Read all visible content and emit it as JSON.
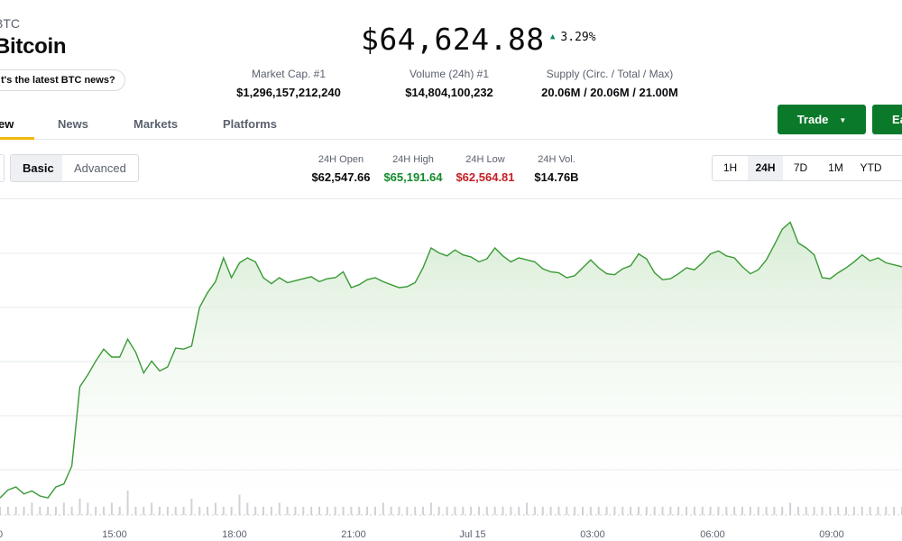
{
  "asset": {
    "ticker": "BTC",
    "name": "Bitcoin",
    "news_prompt": "t's the latest BTC news?"
  },
  "price": {
    "value": "$64,624.88",
    "change": "3.29%",
    "change_direction": "up",
    "change_color": "#098551"
  },
  "stats": [
    {
      "label": "Market Cap. #1",
      "value": "$1,296,157,212,240"
    },
    {
      "label": "Volume (24h) #1",
      "value": "$14,804,100,232"
    },
    {
      "label": "Supply (Circ. / Total / Max)",
      "value": "20.06M / 20.06M / 21.00M"
    }
  ],
  "tabs": [
    {
      "label": "ew",
      "active": true
    },
    {
      "label": "News",
      "active": false
    },
    {
      "label": "Markets",
      "active": false
    },
    {
      "label": "Platforms",
      "active": false
    }
  ],
  "actions": {
    "trade_label": "Trade",
    "earn_label": "Ea"
  },
  "view_toggle": {
    "options": [
      "Basic",
      "Advanced"
    ],
    "selected": "Basic"
  },
  "ohlc": [
    {
      "label": "24H Open",
      "value": "$62,547.66",
      "tone": "neutral"
    },
    {
      "label": "24H High",
      "value": "$65,191.64",
      "tone": "green"
    },
    {
      "label": "24H Low",
      "value": "$62,564.81",
      "tone": "red"
    },
    {
      "label": "24H Vol.",
      "value": "$14.76B",
      "tone": "neutral"
    }
  ],
  "ranges": {
    "options": [
      "1H",
      "24H",
      "7D",
      "1M",
      "YTD"
    ],
    "selected": "24H"
  },
  "chart_data": {
    "type": "area",
    "line_color": "#3a9a35",
    "fill_color": "#e3f2e1",
    "x_tick_labels": [
      "0",
      "15:00",
      "18:00",
      "21:00",
      "Jul 15",
      "03:00",
      "06:00",
      "09:00"
    ],
    "grid": true,
    "ylim": [
      62300,
      65300
    ],
    "series": [
      {
        "values": [
          62380,
          62460,
          62490,
          62420,
          62450,
          62400,
          62380,
          62490,
          62520,
          62700,
          63500,
          63620,
          63760,
          63880,
          63800,
          63800,
          63980,
          63850,
          63640,
          63760,
          63660,
          63700,
          63890,
          63880,
          63910,
          64300,
          64450,
          64560,
          64800,
          64600,
          64750,
          64800,
          64760,
          64600,
          64540,
          64600,
          64550,
          64570,
          64590,
          64610,
          64560,
          64590,
          64600,
          64660,
          64500,
          64530,
          64580,
          64600,
          64560,
          64530,
          64500,
          64510,
          64550,
          64700,
          64900,
          64850,
          64820,
          64880,
          64830,
          64810,
          64760,
          64790,
          64900,
          64820,
          64760,
          64800,
          64780,
          64760,
          64690,
          64660,
          64650,
          64600,
          64620,
          64700,
          64780,
          64700,
          64640,
          64630,
          64690,
          64720,
          64840,
          64790,
          64650,
          64580,
          64590,
          64640,
          64700,
          64680,
          64750,
          64840,
          64870,
          64820,
          64800,
          64710,
          64640,
          64680,
          64780,
          64930,
          65090,
          65160,
          64950,
          64900,
          64830,
          64600,
          64590,
          64650,
          64700,
          64760,
          64830,
          64770,
          64800,
          64750,
          64730,
          64710
        ]
      }
    ],
    "volume": [
      2,
      2,
      2,
      2,
      3,
      2,
      2,
      2,
      3,
      2,
      4,
      3,
      2,
      2,
      3,
      2,
      6,
      2,
      2,
      3,
      2,
      2,
      2,
      2,
      4,
      2,
      2,
      3,
      2,
      2,
      5,
      3,
      2,
      2,
      2,
      3,
      2,
      2,
      2,
      2,
      2,
      2,
      2,
      2,
      2,
      2,
      2,
      2,
      3,
      2,
      2,
      2,
      2,
      2,
      3,
      2,
      2,
      2,
      2,
      2,
      2,
      2,
      2,
      2,
      2,
      2,
      3,
      2,
      2,
      2,
      2,
      2,
      2,
      2,
      2,
      2,
      2,
      2,
      2,
      2,
      2,
      2,
      2,
      2,
      2,
      2,
      2,
      2,
      2,
      2,
      2,
      2,
      2,
      2,
      2,
      2,
      2,
      2,
      2,
      3,
      2,
      2,
      2,
      2,
      2,
      2,
      2,
      2,
      2,
      2,
      2,
      2,
      2,
      2
    ]
  }
}
